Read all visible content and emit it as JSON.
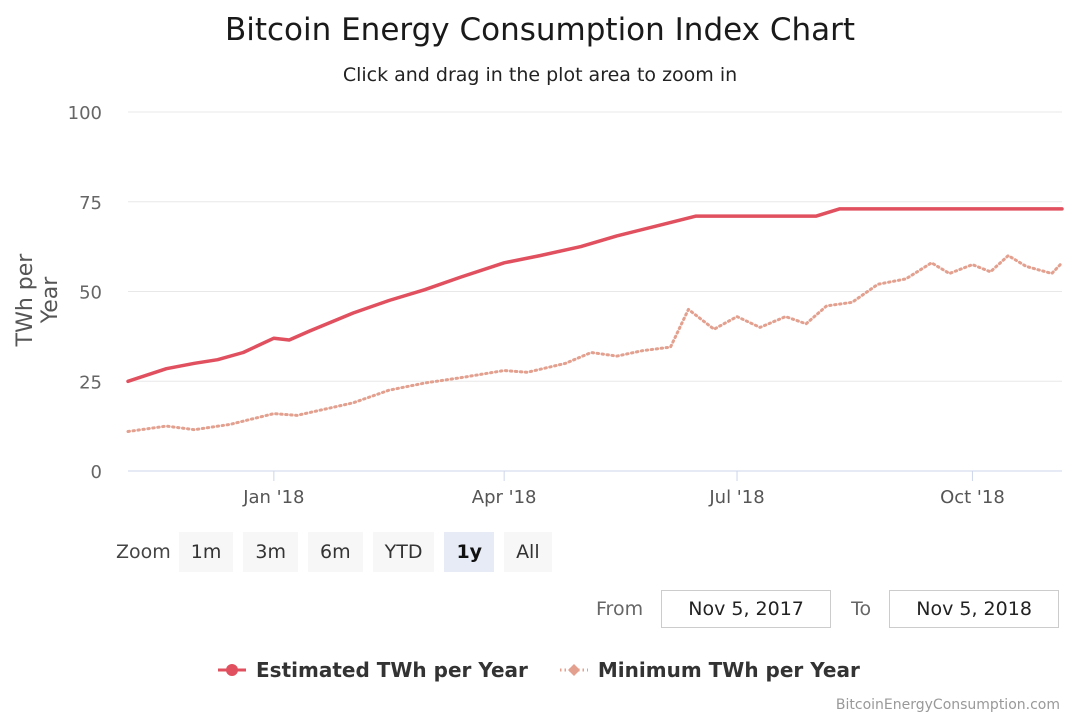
{
  "colors": {
    "estimated": "#e0505f",
    "minimum": "#e3a08f"
  },
  "zoom": {
    "label": "Zoom",
    "buttons": [
      "1m",
      "3m",
      "6m",
      "YTD",
      "1y",
      "All"
    ],
    "active": "1y"
  },
  "range": {
    "from_label": "From",
    "from_value": "Nov 5, 2017",
    "to_label": "To",
    "to_value": "Nov 5, 2018"
  },
  "credit": "BitcoinEnergyConsumption.com",
  "chart_data": {
    "type": "line",
    "title": "Bitcoin Energy Consumption Index Chart",
    "subtitle": "Click and drag in the plot area to zoom in",
    "xlabel": "",
    "ylabel": "TWh per Year",
    "x_range": [
      "2017-11-05",
      "2018-11-05"
    ],
    "ylim": [
      0,
      100
    ],
    "y_ticks": [
      0,
      25,
      50,
      75,
      100
    ],
    "x_ticks": [
      {
        "label": "Jan '18",
        "date": "2018-01-01"
      },
      {
        "label": "Apr '18",
        "date": "2018-04-01"
      },
      {
        "label": "Jul '18",
        "date": "2018-07-01"
      },
      {
        "label": "Oct '18",
        "date": "2018-10-01"
      }
    ],
    "grid": true,
    "legend": "bottom-center",
    "series": [
      {
        "name": "Estimated TWh per Year",
        "style": "solid",
        "points": [
          [
            "2017-11-05",
            25
          ],
          [
            "2017-11-20",
            28.5
          ],
          [
            "2017-12-01",
            30
          ],
          [
            "2017-12-10",
            31
          ],
          [
            "2017-12-20",
            33
          ],
          [
            "2018-01-01",
            37
          ],
          [
            "2018-01-07",
            36.5
          ],
          [
            "2018-01-15",
            39
          ],
          [
            "2018-02-01",
            44
          ],
          [
            "2018-02-15",
            47.5
          ],
          [
            "2018-03-01",
            50.5
          ],
          [
            "2018-03-15",
            54
          ],
          [
            "2018-04-01",
            58
          ],
          [
            "2018-04-15",
            60
          ],
          [
            "2018-05-01",
            62.5
          ],
          [
            "2018-05-15",
            65.5
          ],
          [
            "2018-06-01",
            68.5
          ],
          [
            "2018-06-15",
            71
          ],
          [
            "2018-07-01",
            71
          ],
          [
            "2018-07-15",
            71
          ],
          [
            "2018-08-01",
            71
          ],
          [
            "2018-08-10",
            73
          ],
          [
            "2018-09-01",
            73
          ],
          [
            "2018-10-01",
            73
          ],
          [
            "2018-11-05",
            73
          ]
        ]
      },
      {
        "name": "Minimum TWh per Year",
        "style": "dotted",
        "points": [
          [
            "2017-11-05",
            11
          ],
          [
            "2017-11-20",
            12.5
          ],
          [
            "2017-12-01",
            11.5
          ],
          [
            "2017-12-15",
            13
          ],
          [
            "2018-01-01",
            16
          ],
          [
            "2018-01-10",
            15.5
          ],
          [
            "2018-02-01",
            19
          ],
          [
            "2018-02-15",
            22.5
          ],
          [
            "2018-03-01",
            24.5
          ],
          [
            "2018-03-15",
            26
          ],
          [
            "2018-04-01",
            28
          ],
          [
            "2018-04-10",
            27.5
          ],
          [
            "2018-04-25",
            30
          ],
          [
            "2018-05-05",
            33
          ],
          [
            "2018-05-15",
            32
          ],
          [
            "2018-05-25",
            33.5
          ],
          [
            "2018-06-05",
            34.5
          ],
          [
            "2018-06-12",
            45
          ],
          [
            "2018-06-22",
            39.5
          ],
          [
            "2018-07-01",
            43
          ],
          [
            "2018-07-10",
            40
          ],
          [
            "2018-07-20",
            43
          ],
          [
            "2018-07-28",
            41
          ],
          [
            "2018-08-05",
            46
          ],
          [
            "2018-08-15",
            47
          ],
          [
            "2018-08-25",
            52
          ],
          [
            "2018-09-05",
            53.5
          ],
          [
            "2018-09-15",
            58
          ],
          [
            "2018-09-22",
            55
          ],
          [
            "2018-10-01",
            57.5
          ],
          [
            "2018-10-08",
            55.5
          ],
          [
            "2018-10-15",
            60
          ],
          [
            "2018-10-22",
            57
          ],
          [
            "2018-11-01",
            55
          ],
          [
            "2018-11-05",
            58
          ]
        ]
      }
    ]
  }
}
